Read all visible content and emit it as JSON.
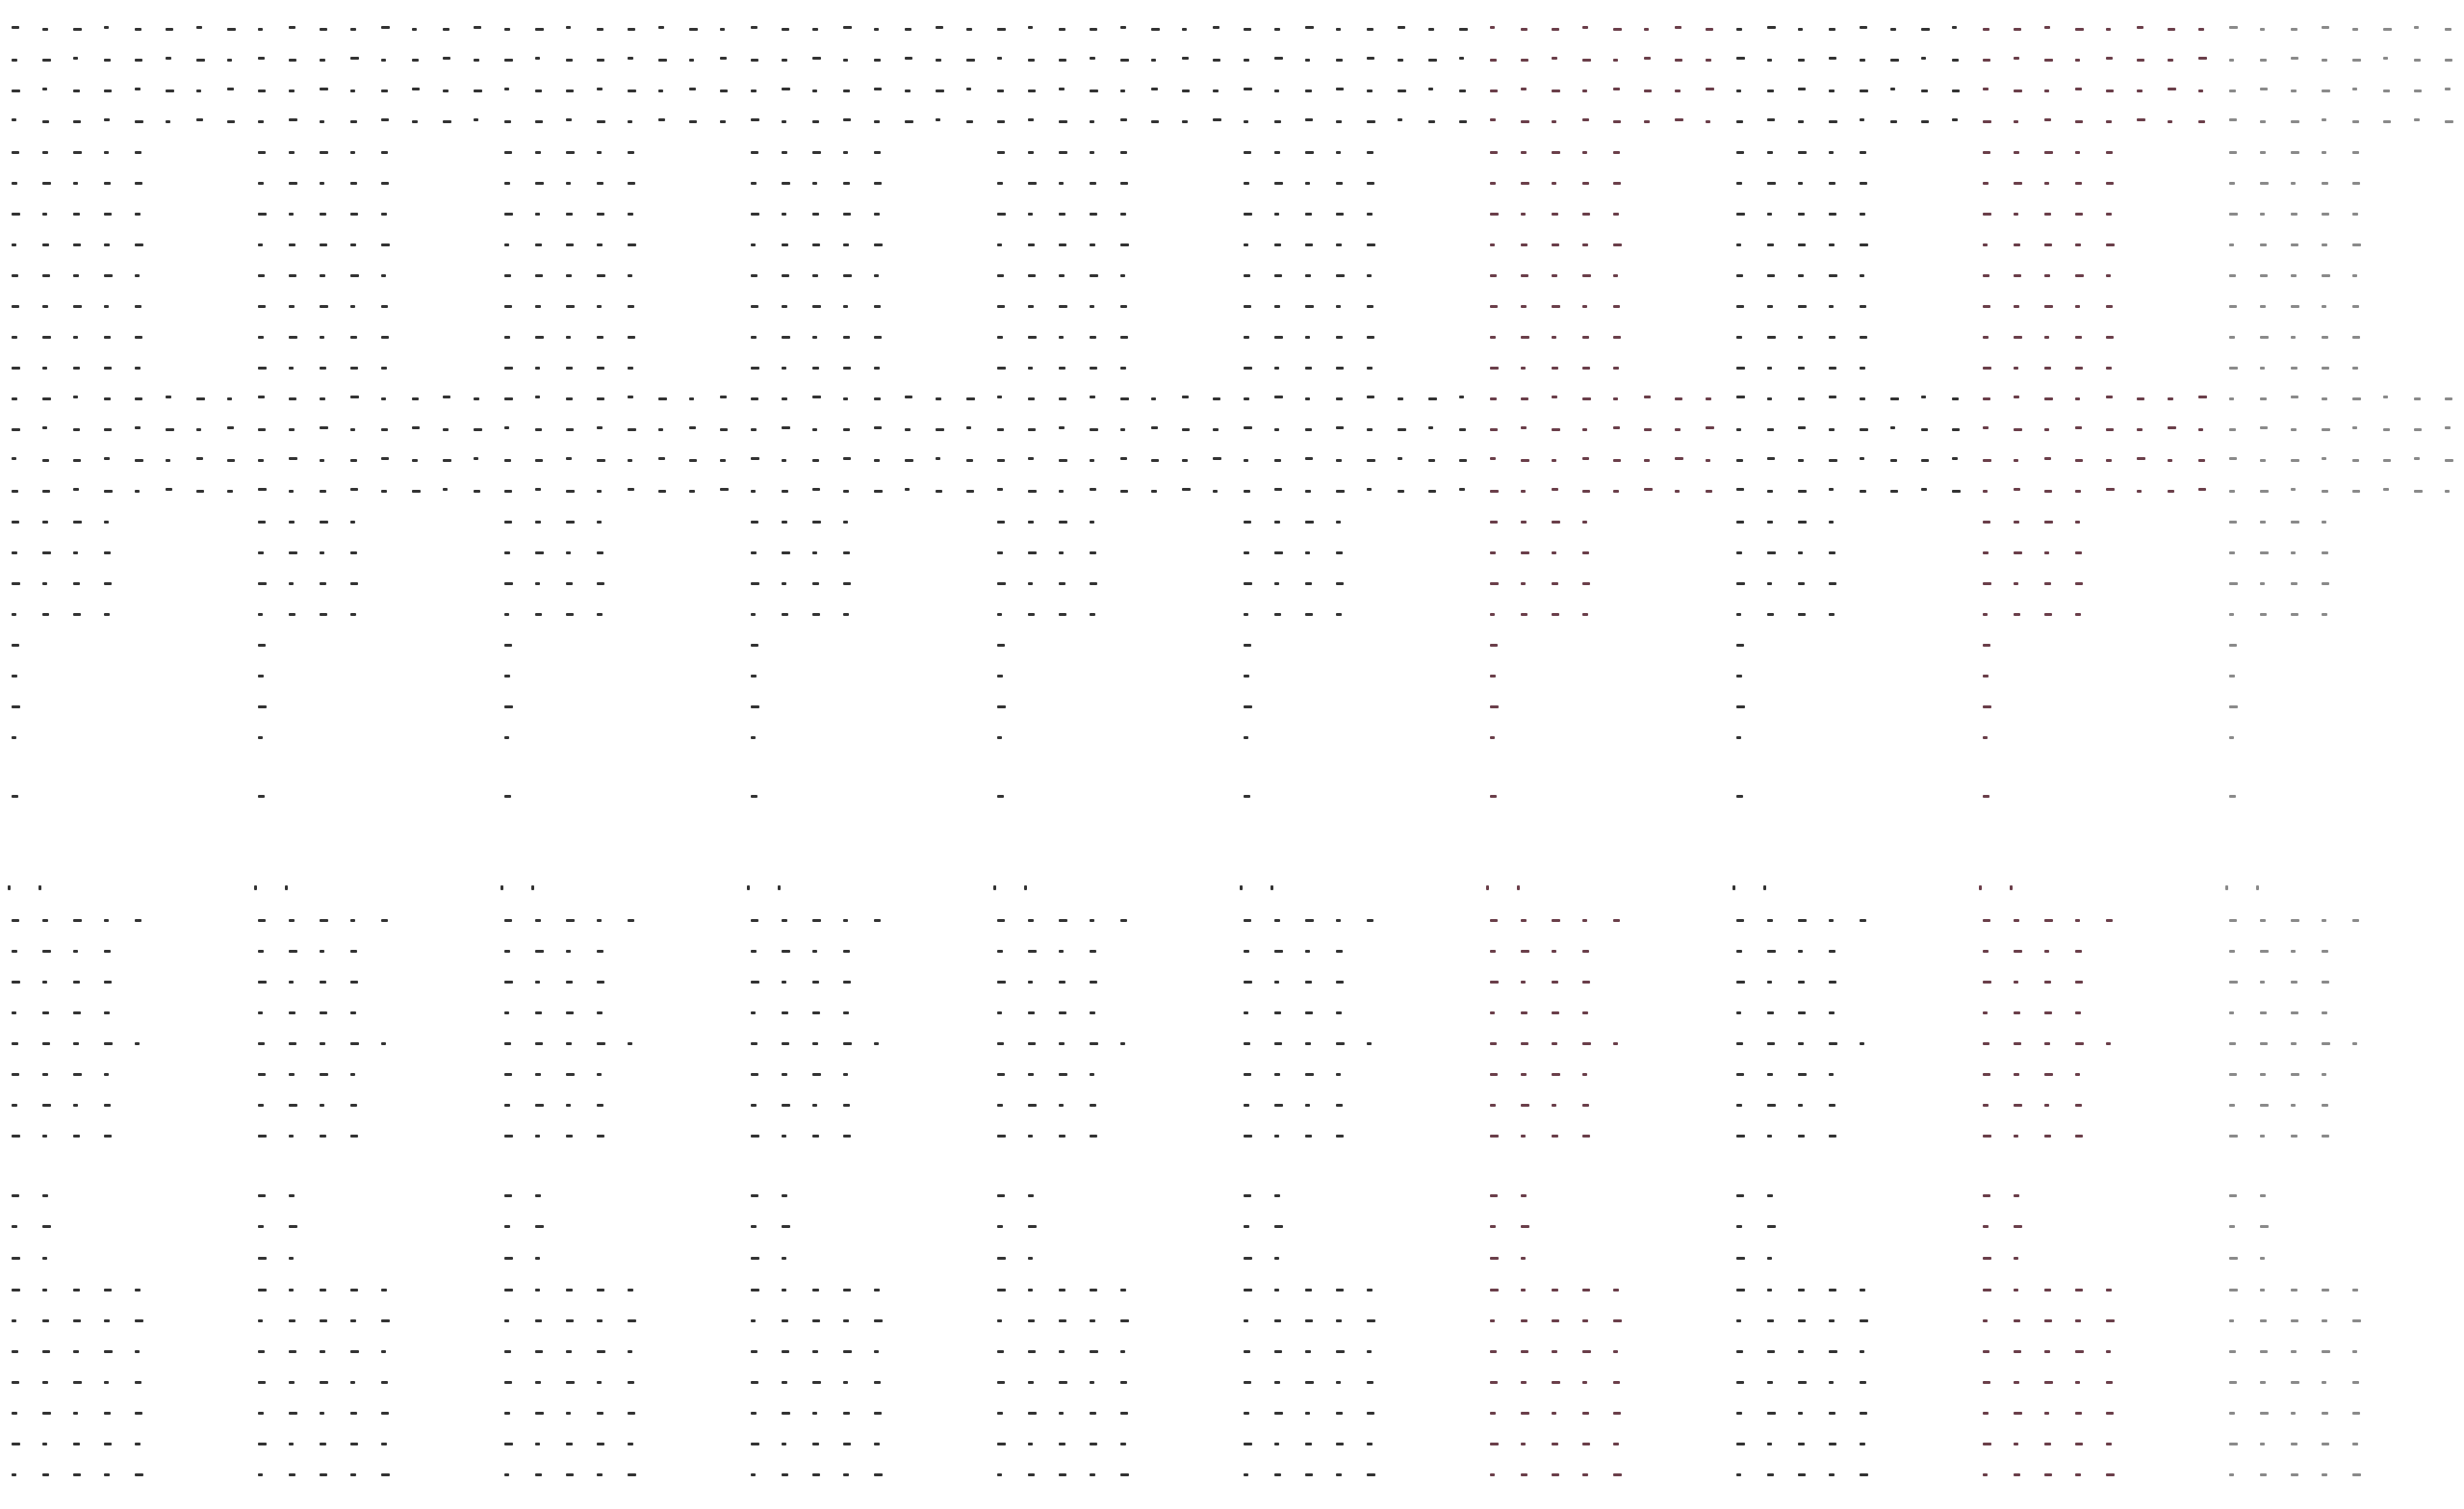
{
  "colors": {
    "background": "#ffffff",
    "mark_default": "#333333",
    "mark_accent": "#6b3f4a",
    "mark_muted": "#8a8a8a"
  },
  "blocks": {
    "count": 10,
    "accent_blocks": [
      6,
      8
    ],
    "muted_blocks": [
      9
    ]
  }
}
